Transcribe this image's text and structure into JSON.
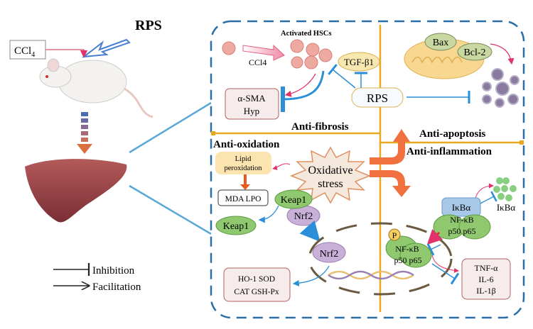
{
  "left": {
    "rps_title": "RPS",
    "ccl4_box": "CCl",
    "ccl4_sub": "4",
    "legend": {
      "inhibition": "Inhibition",
      "facilitation": "Facilitation"
    }
  },
  "fibrosis": {
    "activated_hscs": "Activated HSCs",
    "ccl4": "CCl4",
    "tgf": "TGF-β1",
    "asma": "α-SMA",
    "hyp": "Hyp",
    "rps": "RPS",
    "label": "Anti-fibrosis"
  },
  "apoptosis": {
    "bax": "Bax",
    "bcl2": "Bcl-2",
    "label": "Anti-apoptosis"
  },
  "oxidation": {
    "label": "Anti-oxidation",
    "lipid1": "Lipid",
    "lipid2": "peroxidation",
    "stress1": "Oxidative",
    "stress2": "stress",
    "mda_lpo": "MDA  LPO",
    "keap1_bound": "Keap1",
    "nrf2_bound": "Nrf2",
    "keap1_free": "Keap1",
    "nrf2_nucleus": "Nrf2",
    "enzymes1": "HO-1  SOD",
    "enzymes2": "CAT  GSH-Px"
  },
  "inflammation": {
    "label": "Anti-inflammation",
    "ikba_box": "IκBα",
    "nfkb": "NF-κB",
    "p50p65": "p50  p65",
    "ikba_free": "IκBα",
    "p_label": "P",
    "nfkb_nuc": "NF-κB",
    "p50p65_nuc": "p50  p65",
    "tnf": "TNF-α",
    "il6": "IL-6",
    "il1b": "IL-1β"
  },
  "colors": {
    "frame": "#2a6fa8",
    "divider": "#e8a820",
    "inhibit": "#2a8fd8",
    "promote": "#e0336a",
    "big_arrow": "#f07040"
  }
}
